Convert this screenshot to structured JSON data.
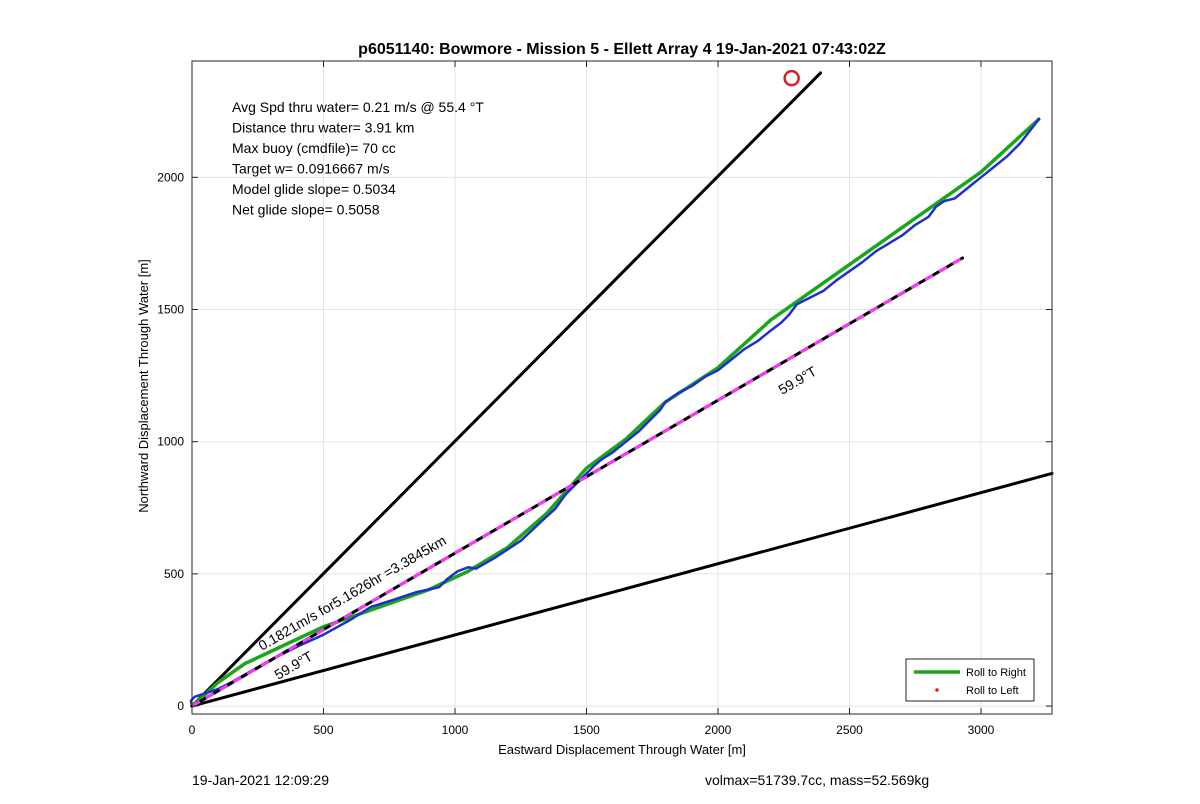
{
  "chart_data": {
    "type": "line",
    "title": "p6051140: Bowmore - Mission 5 - Ellett Array 4 19-Jan-2021 07:43:02Z",
    "xlabel": "Eastward Displacement Through Water [m]",
    "ylabel": "Northward Displacement Through Water [m]",
    "xlim": [
      0,
      3270
    ],
    "ylim": [
      -30,
      2440
    ],
    "xticks": [
      0,
      500,
      1000,
      1500,
      2000,
      2500,
      3000
    ],
    "yticks": [
      0,
      500,
      1000,
      1500,
      2000
    ],
    "grid": true,
    "legend_position": "bottom-right",
    "legend": [
      {
        "label": "Roll to Right",
        "color": "#1aa61a",
        "marker": "line"
      },
      {
        "label": "Roll to Left",
        "color": "#d62020",
        "marker": "dot"
      }
    ],
    "stats": [
      "Avg Spd thru water=  0.21 m/s @  55.4 °T",
      "Distance thru water=  3.91 km",
      "Max buoy (cmdfile)= 70 cc",
      "Target w= 0.0916667 m/s",
      "Model glide slope= 0.5034",
      "Net glide slope= 0.5058"
    ],
    "annotations": {
      "speed_label": "0.1821m/s for5.1626hr =3.3845km",
      "heading_label_upper": "59.9°T",
      "heading_label_lower": "59.9°T"
    },
    "series": [
      {
        "name": "Roll to Right",
        "color": "#1aa61a",
        "x": [
          0,
          40,
          100,
          200,
          350,
          500,
          700,
          900,
          1050,
          1200,
          1350,
          1500,
          1650,
          1800,
          2000,
          2200,
          2400,
          2600,
          2800,
          3000,
          3220
        ],
        "y": [
          0,
          35,
          90,
          160,
          230,
          300,
          370,
          440,
          510,
          600,
          730,
          900,
          1010,
          1150,
          1280,
          1460,
          1600,
          1740,
          1880,
          2020,
          2220
        ]
      },
      {
        "name": "track",
        "color": "#1f2fcf",
        "x": [
          0,
          -4,
          10,
          40,
          70,
          100,
          150,
          220,
          300,
          400,
          500,
          600,
          680,
          760,
          850,
          940,
          970,
          1010,
          1050,
          1080,
          1150,
          1250,
          1330,
          1380,
          1420,
          1480,
          1530,
          1560,
          1600,
          1650,
          1700,
          1750,
          1780,
          1800,
          1850,
          1900,
          1950,
          2000,
          2050,
          2100,
          2150,
          2200,
          2240,
          2270,
          2300,
          2350,
          2400,
          2450,
          2500,
          2550,
          2600,
          2650,
          2700,
          2750,
          2800,
          2830,
          2860,
          2900,
          2950,
          3000,
          3050,
          3100,
          3150,
          3220
        ],
        "y": [
          0,
          20,
          35,
          45,
          55,
          65,
          90,
          130,
          175,
          225,
          270,
          325,
          375,
          400,
          430,
          450,
          480,
          510,
          525,
          520,
          560,
          625,
          700,
          745,
          800,
          860,
          910,
          935,
          960,
          1000,
          1040,
          1090,
          1120,
          1150,
          1185,
          1210,
          1245,
          1270,
          1310,
          1350,
          1380,
          1420,
          1450,
          1480,
          1520,
          1545,
          1570,
          1610,
          1645,
          1680,
          1720,
          1750,
          1780,
          1820,
          1850,
          1890,
          1910,
          1920,
          1960,
          2000,
          2040,
          2080,
          2130,
          2220
        ]
      },
      {
        "name": "reference-steep",
        "color": "#000000",
        "x": [
          0,
          2390
        ],
        "y": [
          0,
          2395
        ]
      },
      {
        "name": "reference-shallow",
        "color": "#000000",
        "x": [
          0,
          3270
        ],
        "y": [
          0,
          880
        ]
      },
      {
        "name": "reference-heading",
        "color": "#000000",
        "dash_color": "#ff33ff",
        "x": [
          0,
          2930
        ],
        "y": [
          0,
          1695
        ]
      }
    ],
    "waypoint": {
      "x": 2280,
      "y": 2375,
      "color": "#d62020"
    }
  },
  "footer": {
    "left": "19-Jan-2021 12:09:29",
    "right": "volmax=51739.7cc, mass=52.569kg"
  }
}
